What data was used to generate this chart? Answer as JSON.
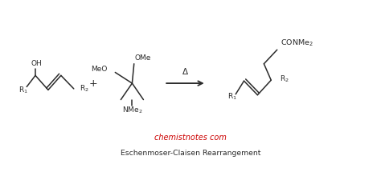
{
  "bg_color": "#ffffff",
  "text_color": "#2a2a2a",
  "website_color": "#cc0000",
  "website_text": "chemistnotes com",
  "title_text": "Eschenmoser-Claisen Rearrangement",
  "delta_symbol": "Δ",
  "figsize": [
    4.74,
    2.15
  ],
  "dpi": 100
}
